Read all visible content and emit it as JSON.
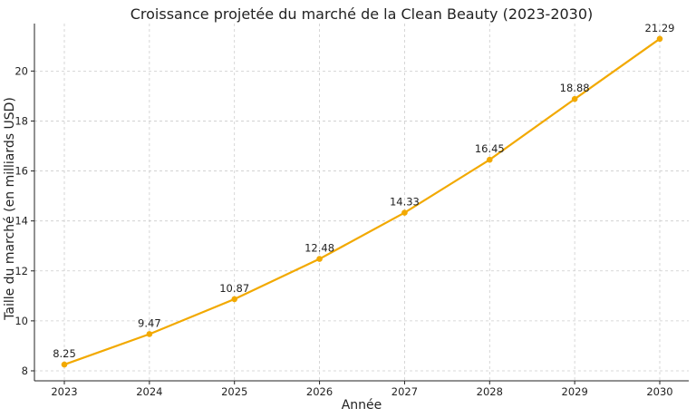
{
  "chart_data": {
    "type": "line",
    "title": "Croissance projetée du marché de la Clean Beauty (2023-2030)",
    "xlabel": "Année",
    "ylabel": "Taille du marché (en milliards USD)",
    "categories": [
      "2023",
      "2024",
      "2025",
      "2026",
      "2027",
      "2028",
      "2029",
      "2030"
    ],
    "series": [
      {
        "values": [
          8.25,
          9.47,
          10.87,
          12.48,
          14.33,
          16.45,
          18.88,
          21.29
        ],
        "color": "#F2A900"
      }
    ],
    "data_labels": [
      "8.25",
      "9.47",
      "10.87",
      "12.48",
      "14.33",
      "16.45",
      "18.88",
      "21.29"
    ],
    "y_ticks": [
      8,
      10,
      12,
      14,
      16,
      18,
      20
    ],
    "y_tick_labels": [
      "8",
      "10",
      "12",
      "14",
      "16",
      "18",
      "20"
    ],
    "ylim": [
      7.6,
      21.9
    ],
    "grid": true,
    "grid_style": "dashed",
    "marker": "circle"
  }
}
